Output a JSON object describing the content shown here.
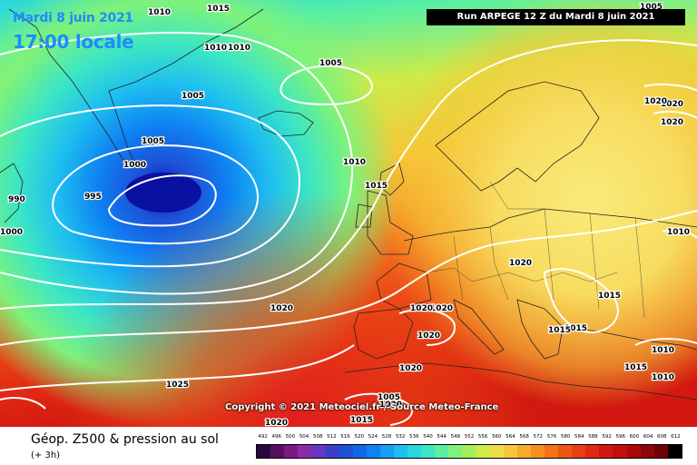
{
  "header": {
    "date_title": "Mardi 8 juin 2021",
    "time_title": "17:00 locale",
    "run_info": "Run ARPEGE 12 Z du Mardi 8 juin 2021"
  },
  "copyright": "Copyright © 2021 Meteociel.fr / Source Meteo-France",
  "footer": {
    "product_title": "Géop. Z500 & pression au sol",
    "product_subtitle": "(+ 3h)"
  },
  "scale": {
    "values": [
      "492",
      "496",
      "500",
      "504",
      "508",
      "512",
      "516",
      "520",
      "524",
      "528",
      "532",
      "536",
      "540",
      "544",
      "548",
      "552",
      "556",
      "560",
      "564",
      "568",
      "572",
      "576",
      "580",
      "584",
      "588",
      "592",
      "596",
      "600",
      "604",
      "608",
      "612"
    ],
    "colors": [
      "#2a0640",
      "#55105e",
      "#7a1a82",
      "#8c2ba6",
      "#6a35c0",
      "#3b3fc8",
      "#1e50d8",
      "#1266e8",
      "#0e82f2",
      "#14a0f5",
      "#1ebef0",
      "#28d6e0",
      "#3ce6c4",
      "#5af0a0",
      "#7ef27a",
      "#a6ef5c",
      "#cfeb48",
      "#ede046",
      "#f5c838",
      "#f7aa2c",
      "#f78e22",
      "#f3721a",
      "#ee5616",
      "#e83e14",
      "#e02812",
      "#d21810",
      "#c0100e",
      "#a80a0c",
      "#8c050a",
      "#6e0208",
      "#000000"
    ]
  },
  "isobar_labels": [
    {
      "text": "1010"
    },
    {
      "text": "1015"
    },
    {
      "text": "1005"
    },
    {
      "text": "1010"
    },
    {
      "text": "1010"
    },
    {
      "text": "1005"
    },
    {
      "text": "1005"
    },
    {
      "text": "1005"
    },
    {
      "text": "1000"
    },
    {
      "text": "995"
    },
    {
      "text": "990"
    },
    {
      "text": "1000"
    },
    {
      "text": "1010"
    },
    {
      "text": "1015"
    },
    {
      "text": "1020"
    },
    {
      "text": "1020"
    },
    {
      "text": "1010"
    },
    {
      "text": "1020"
    },
    {
      "text": "1015"
    },
    {
      "text": "1015"
    },
    {
      "text": "1015"
    },
    {
      "text": "1010"
    },
    {
      "text": "1010"
    },
    {
      "text": "1015"
    },
    {
      "text": "1020"
    },
    {
      "text": "1020"
    },
    {
      "text": "1020"
    },
    {
      "text": "1020"
    },
    {
      "text": "1020"
    },
    {
      "text": "1020"
    },
    {
      "text": "1025"
    },
    {
      "text": "1020"
    },
    {
      "text": "1020"
    },
    {
      "text": "1015"
    },
    {
      "text": "1005"
    }
  ]
}
